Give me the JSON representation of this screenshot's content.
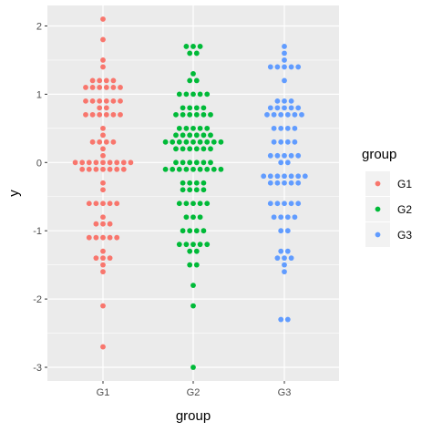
{
  "chart_data": {
    "type": "scatter",
    "subtype": "dotplot",
    "title": "",
    "xlabel": "group",
    "ylabel": "y",
    "ylim": [
      -3.2,
      2.3
    ],
    "yticks": [
      -3,
      -2,
      -1,
      0,
      1,
      2
    ],
    "categories": [
      "G1",
      "G2",
      "G3"
    ],
    "grid": true,
    "background": "#EBEBEB",
    "legend": {
      "title": "group",
      "position": "right",
      "entries": [
        "G1",
        "G2",
        "G3"
      ]
    },
    "series": [
      {
        "name": "G1",
        "color": "#F8766D",
        "values": [
          2.1,
          1.8,
          1.5,
          1.4,
          1.2,
          1.2,
          1.2,
          1.1,
          1.1,
          1.1,
          1.1,
          1.1,
          1.1,
          1.2,
          0.9,
          0.9,
          0.9,
          0.9,
          0.9,
          0.9,
          0.8,
          0.8,
          0.7,
          0.7,
          0.7,
          0.7,
          0.7,
          0.7,
          0.5,
          0.4,
          0.3,
          0.3,
          0.3,
          0.3,
          0.2,
          0.1,
          0.0,
          0.0,
          0.0,
          0.0,
          0.0,
          0.0,
          0.0,
          0.0,
          0.0,
          -0.1,
          -0.1,
          -0.1,
          -0.1,
          -0.1,
          -0.1,
          -0.1,
          -0.3,
          -0.4,
          -0.6,
          -0.6,
          -0.6,
          -0.6,
          -0.6,
          -0.8,
          -0.9,
          -0.9,
          -0.9,
          -1.1,
          -1.1,
          -1.1,
          -1.1,
          -1.1,
          -1.3,
          -1.4,
          -1.4,
          -1.4,
          -1.5,
          -1.6,
          -2.1,
          -2.7
        ]
      },
      {
        "name": "G2",
        "color": "#00BA38",
        "values": [
          1.7,
          1.7,
          1.7,
          1.6,
          1.6,
          1.3,
          1.2,
          1.2,
          1.0,
          1.0,
          1.0,
          1.0,
          1.0,
          0.8,
          0.8,
          0.8,
          0.8,
          0.7,
          0.7,
          0.7,
          0.7,
          0.7,
          0.7,
          0.5,
          0.5,
          0.5,
          0.5,
          0.5,
          0.4,
          0.4,
          0.4,
          0.4,
          0.4,
          0.4,
          0.3,
          0.3,
          0.3,
          0.3,
          0.3,
          0.3,
          0.3,
          0.3,
          0.3,
          0.2,
          0.2,
          0.2,
          0.2,
          0.2,
          0.2,
          0.0,
          0.0,
          0.0,
          0.0,
          0.0,
          0.0,
          -0.1,
          -0.1,
          -0.1,
          -0.1,
          -0.1,
          -0.1,
          -0.1,
          -0.1,
          -0.1,
          -0.3,
          -0.3,
          -0.3,
          -0.3,
          -0.4,
          -0.4,
          -0.4,
          -0.4,
          -0.6,
          -0.6,
          -0.6,
          -0.6,
          -0.6,
          -0.8,
          -0.8,
          -0.8,
          -1.0,
          -1.0,
          -1.0,
          -1.0,
          -1.2,
          -1.2,
          -1.2,
          -1.2,
          -1.2,
          -1.3,
          -1.3,
          -1.5,
          -1.5,
          -1.8,
          -2.1,
          -3.0
        ]
      },
      {
        "name": "G3",
        "color": "#619CFF",
        "values": [
          1.7,
          1.6,
          1.5,
          1.4,
          1.4,
          1.4,
          1.4,
          1.4,
          1.2,
          0.9,
          0.9,
          0.9,
          0.8,
          0.8,
          0.8,
          0.8,
          0.8,
          0.7,
          0.7,
          0.7,
          0.7,
          0.7,
          0.7,
          0.5,
          0.5,
          0.5,
          0.5,
          0.3,
          0.3,
          0.3,
          0.3,
          0.1,
          0.1,
          0.1,
          0.1,
          0.1,
          0.0,
          0.0,
          -0.2,
          -0.2,
          -0.2,
          -0.2,
          -0.2,
          -0.2,
          -0.2,
          -0.3,
          -0.3,
          -0.3,
          -0.3,
          -0.3,
          -0.6,
          -0.6,
          -0.6,
          -0.6,
          -0.6,
          -0.8,
          -0.8,
          -0.8,
          -0.8,
          -1.0,
          -1.0,
          -1.3,
          -1.3,
          -1.4,
          -1.4,
          -1.4,
          -1.5,
          -1.6,
          -2.3,
          -2.3
        ]
      }
    ]
  }
}
